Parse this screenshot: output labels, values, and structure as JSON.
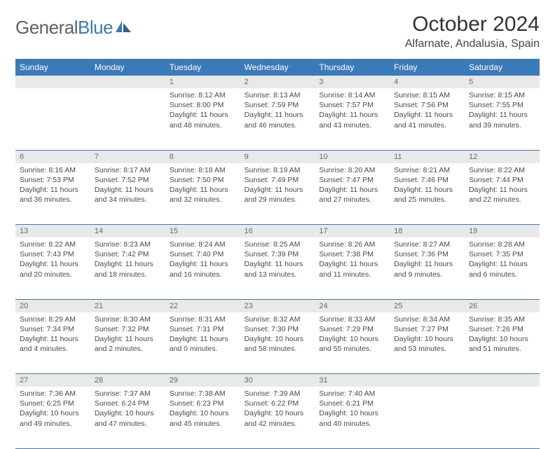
{
  "brand": {
    "part1": "General",
    "part2": "Blue"
  },
  "title": "October 2024",
  "location": "Alfarnate, Andalusia, Spain",
  "colors": {
    "header_bg": "#3b7ab8",
    "header_text": "#ffffff",
    "daynum_bg": "#e9e9e9",
    "daynum_text": "#6a6a6a",
    "cell_text": "#4a4a4a",
    "rule": "#3b7ab8",
    "page_bg": "#ffffff"
  },
  "day_headers": [
    "Sunday",
    "Monday",
    "Tuesday",
    "Wednesday",
    "Thursday",
    "Friday",
    "Saturday"
  ],
  "weeks": [
    {
      "nums": [
        "",
        "",
        "1",
        "2",
        "3",
        "4",
        "5"
      ],
      "cells": [
        null,
        null,
        {
          "sunrise": "Sunrise: 8:12 AM",
          "sunset": "Sunset: 8:00 PM",
          "daylight": "Daylight: 11 hours and 48 minutes."
        },
        {
          "sunrise": "Sunrise: 8:13 AM",
          "sunset": "Sunset: 7:59 PM",
          "daylight": "Daylight: 11 hours and 46 minutes."
        },
        {
          "sunrise": "Sunrise: 8:14 AM",
          "sunset": "Sunset: 7:57 PM",
          "daylight": "Daylight: 11 hours and 43 minutes."
        },
        {
          "sunrise": "Sunrise: 8:15 AM",
          "sunset": "Sunset: 7:56 PM",
          "daylight": "Daylight: 11 hours and 41 minutes."
        },
        {
          "sunrise": "Sunrise: 8:15 AM",
          "sunset": "Sunset: 7:55 PM",
          "daylight": "Daylight: 11 hours and 39 minutes."
        }
      ]
    },
    {
      "nums": [
        "6",
        "7",
        "8",
        "9",
        "10",
        "11",
        "12"
      ],
      "cells": [
        {
          "sunrise": "Sunrise: 8:16 AM",
          "sunset": "Sunset: 7:53 PM",
          "daylight": "Daylight: 11 hours and 36 minutes."
        },
        {
          "sunrise": "Sunrise: 8:17 AM",
          "sunset": "Sunset: 7:52 PM",
          "daylight": "Daylight: 11 hours and 34 minutes."
        },
        {
          "sunrise": "Sunrise: 8:18 AM",
          "sunset": "Sunset: 7:50 PM",
          "daylight": "Daylight: 11 hours and 32 minutes."
        },
        {
          "sunrise": "Sunrise: 8:19 AM",
          "sunset": "Sunset: 7:49 PM",
          "daylight": "Daylight: 11 hours and 29 minutes."
        },
        {
          "sunrise": "Sunrise: 8:20 AM",
          "sunset": "Sunset: 7:47 PM",
          "daylight": "Daylight: 11 hours and 27 minutes."
        },
        {
          "sunrise": "Sunrise: 8:21 AM",
          "sunset": "Sunset: 7:46 PM",
          "daylight": "Daylight: 11 hours and 25 minutes."
        },
        {
          "sunrise": "Sunrise: 8:22 AM",
          "sunset": "Sunset: 7:44 PM",
          "daylight": "Daylight: 11 hours and 22 minutes."
        }
      ]
    },
    {
      "nums": [
        "13",
        "14",
        "15",
        "16",
        "17",
        "18",
        "19"
      ],
      "cells": [
        {
          "sunrise": "Sunrise: 8:22 AM",
          "sunset": "Sunset: 7:43 PM",
          "daylight": "Daylight: 11 hours and 20 minutes."
        },
        {
          "sunrise": "Sunrise: 8:23 AM",
          "sunset": "Sunset: 7:42 PM",
          "daylight": "Daylight: 11 hours and 18 minutes."
        },
        {
          "sunrise": "Sunrise: 8:24 AM",
          "sunset": "Sunset: 7:40 PM",
          "daylight": "Daylight: 11 hours and 16 minutes."
        },
        {
          "sunrise": "Sunrise: 8:25 AM",
          "sunset": "Sunset: 7:39 PM",
          "daylight": "Daylight: 11 hours and 13 minutes."
        },
        {
          "sunrise": "Sunrise: 8:26 AM",
          "sunset": "Sunset: 7:38 PM",
          "daylight": "Daylight: 11 hours and 11 minutes."
        },
        {
          "sunrise": "Sunrise: 8:27 AM",
          "sunset": "Sunset: 7:36 PM",
          "daylight": "Daylight: 11 hours and 9 minutes."
        },
        {
          "sunrise": "Sunrise: 8:28 AM",
          "sunset": "Sunset: 7:35 PM",
          "daylight": "Daylight: 11 hours and 6 minutes."
        }
      ]
    },
    {
      "nums": [
        "20",
        "21",
        "22",
        "23",
        "24",
        "25",
        "26"
      ],
      "cells": [
        {
          "sunrise": "Sunrise: 8:29 AM",
          "sunset": "Sunset: 7:34 PM",
          "daylight": "Daylight: 11 hours and 4 minutes."
        },
        {
          "sunrise": "Sunrise: 8:30 AM",
          "sunset": "Sunset: 7:32 PM",
          "daylight": "Daylight: 11 hours and 2 minutes."
        },
        {
          "sunrise": "Sunrise: 8:31 AM",
          "sunset": "Sunset: 7:31 PM",
          "daylight": "Daylight: 11 hours and 0 minutes."
        },
        {
          "sunrise": "Sunrise: 8:32 AM",
          "sunset": "Sunset: 7:30 PM",
          "daylight": "Daylight: 10 hours and 58 minutes."
        },
        {
          "sunrise": "Sunrise: 8:33 AM",
          "sunset": "Sunset: 7:29 PM",
          "daylight": "Daylight: 10 hours and 55 minutes."
        },
        {
          "sunrise": "Sunrise: 8:34 AM",
          "sunset": "Sunset: 7:27 PM",
          "daylight": "Daylight: 10 hours and 53 minutes."
        },
        {
          "sunrise": "Sunrise: 8:35 AM",
          "sunset": "Sunset: 7:26 PM",
          "daylight": "Daylight: 10 hours and 51 minutes."
        }
      ]
    },
    {
      "nums": [
        "27",
        "28",
        "29",
        "30",
        "31",
        "",
        ""
      ],
      "cells": [
        {
          "sunrise": "Sunrise: 7:36 AM",
          "sunset": "Sunset: 6:25 PM",
          "daylight": "Daylight: 10 hours and 49 minutes."
        },
        {
          "sunrise": "Sunrise: 7:37 AM",
          "sunset": "Sunset: 6:24 PM",
          "daylight": "Daylight: 10 hours and 47 minutes."
        },
        {
          "sunrise": "Sunrise: 7:38 AM",
          "sunset": "Sunset: 6:23 PM",
          "daylight": "Daylight: 10 hours and 45 minutes."
        },
        {
          "sunrise": "Sunrise: 7:39 AM",
          "sunset": "Sunset: 6:22 PM",
          "daylight": "Daylight: 10 hours and 42 minutes."
        },
        {
          "sunrise": "Sunrise: 7:40 AM",
          "sunset": "Sunset: 6:21 PM",
          "daylight": "Daylight: 10 hours and 40 minutes."
        },
        null,
        null
      ]
    }
  ]
}
